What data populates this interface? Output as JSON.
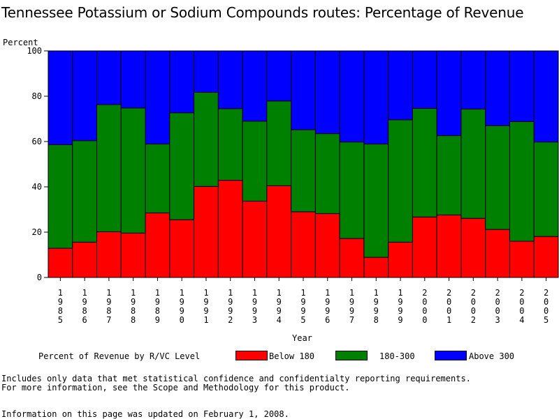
{
  "title": "Tennessee Potassium or Sodium Compounds routes: Percentage of Revenue",
  "ylabel": "Percent",
  "xlabel": "Year",
  "legend": {
    "title": "Percent of Revenue by R/VC Level",
    "items": [
      {
        "label": "Below 180",
        "color": "#ff0000"
      },
      {
        "label": "180-300",
        "color": "#008000"
      },
      {
        "label": "Above 300",
        "color": "#0000ff"
      }
    ]
  },
  "notes": {
    "line1": "Includes only data that met statistical confidence and confidentialty reporting requirements.",
    "line2": "For more information, see the Scope and Methodology for this product.",
    "line3": "Information on this page was updated on February 1, 2008."
  },
  "chart_data": {
    "type": "bar",
    "stacked": true,
    "title": "Tennessee Potassium or Sodium Compounds routes: Percentage of Revenue",
    "xlabel": "Year",
    "ylabel": "Percent",
    "ylim": [
      0,
      100
    ],
    "yticks": [
      0,
      20,
      40,
      60,
      80,
      100
    ],
    "categories": [
      "1985",
      "1986",
      "1987",
      "1988",
      "1989",
      "1990",
      "1991",
      "1992",
      "1993",
      "1994",
      "1995",
      "1996",
      "1997",
      "1998",
      "1999",
      "2000",
      "2001",
      "2002",
      "2003",
      "2004",
      "2005"
    ],
    "series": [
      {
        "name": "Below 180",
        "color": "#ff0000",
        "values": [
          12.9,
          15.6,
          20.2,
          19.6,
          28.5,
          25.5,
          40.2,
          42.9,
          33.7,
          40.5,
          29.0,
          28.2,
          17.2,
          8.9,
          15.6,
          26.7,
          27.6,
          26.1,
          21.2,
          16.0,
          18.1
        ]
      },
      {
        "name": "180-300",
        "color": "#008000",
        "values": [
          45.7,
          44.8,
          56.1,
          55.2,
          30.4,
          47.2,
          41.5,
          31.6,
          35.3,
          37.4,
          36.2,
          35.3,
          42.6,
          50.0,
          54.0,
          47.9,
          35.0,
          48.2,
          45.8,
          52.8,
          41.7
        ]
      },
      {
        "name": "Above 300",
        "color": "#0000ff",
        "values": [
          41.4,
          39.6,
          23.7,
          25.2,
          41.1,
          27.3,
          18.3,
          25.5,
          31.0,
          22.1,
          34.8,
          36.5,
          40.2,
          41.1,
          30.4,
          25.4,
          37.4,
          25.7,
          33.0,
          31.2,
          40.2
        ]
      }
    ],
    "grid": false,
    "legend_position": "bottom"
  }
}
